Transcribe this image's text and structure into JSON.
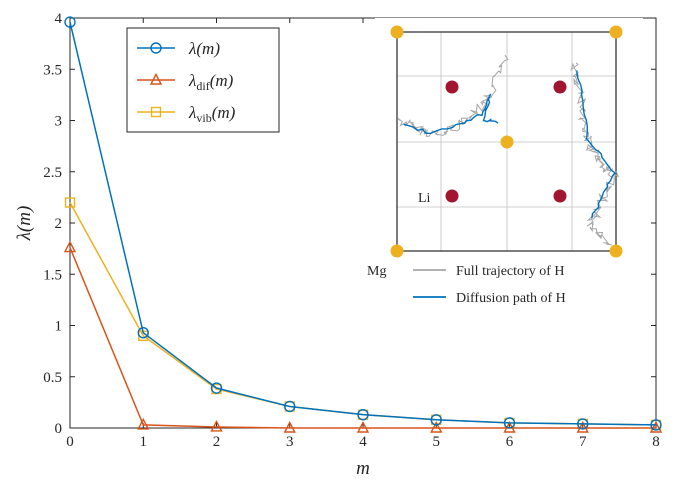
{
  "chart_data": {
    "type": "line",
    "x": [
      0,
      1,
      2,
      3,
      4,
      5,
      6,
      7,
      8
    ],
    "xlabel": "m",
    "ylabel": "λ(m)",
    "xlim": [
      0,
      8
    ],
    "ylim": [
      0,
      4
    ],
    "xticks": [
      "0",
      "1",
      "2",
      "3",
      "4",
      "5",
      "6",
      "7",
      "8"
    ],
    "yticks": [
      "0",
      "0.5",
      "1",
      "1.5",
      "2",
      "2.5",
      "3",
      "3.5",
      "4"
    ],
    "grid": false,
    "legend_position": "top-left",
    "series": [
      {
        "name": "λ(m)",
        "legend_base": "λ",
        "legend_sub": "",
        "legend_arg": "(m)",
        "marker": "circle",
        "color": "#0072BD",
        "values": [
          3.96,
          0.93,
          0.39,
          0.21,
          0.13,
          0.08,
          0.05,
          0.04,
          0.03
        ]
      },
      {
        "name": "λdif(m)",
        "legend_base": "λ",
        "legend_sub": "dif",
        "legend_arg": "(m)",
        "marker": "triangle",
        "color": "#D95319",
        "values": [
          1.76,
          0.03,
          0.01,
          0.0,
          0.0,
          0.0,
          0.0,
          0.0,
          0.0
        ]
      },
      {
        "name": "λvib(m)",
        "legend_base": "λ",
        "legend_sub": "vib",
        "legend_arg": "(m)",
        "marker": "square",
        "color": "#EDB120",
        "values": [
          2.2,
          0.9,
          0.38,
          0.21,
          0.13,
          0.08,
          0.05,
          0.04,
          0.03
        ]
      }
    ],
    "inset": {
      "labels": {
        "li": "Li",
        "mg": "Mg"
      },
      "legend": [
        {
          "label": "Full trajectory of H",
          "color": "#A6A6A6"
        },
        {
          "label": "Diffusion path of H",
          "color": "#0072BD"
        }
      ],
      "colors": {
        "mg_atom": "#EDB120",
        "li_atom": "#A2142F",
        "grid": "#C0C0C0"
      }
    }
  }
}
